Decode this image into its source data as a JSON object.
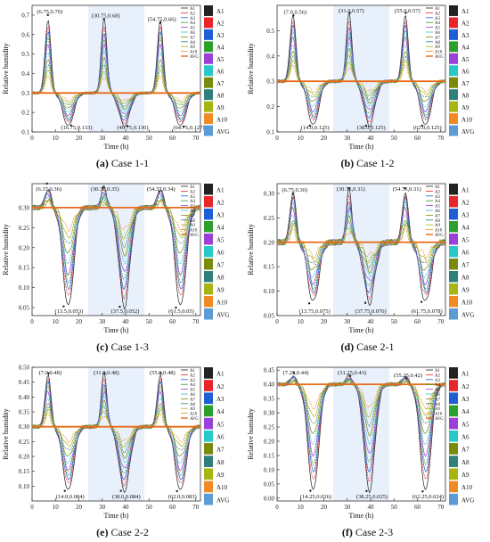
{
  "legend_labels": [
    "A1",
    "A2",
    "A3",
    "A4",
    "A5",
    "A6",
    "A7",
    "A8",
    "A9",
    "A10",
    "AVG"
  ],
  "chart_data": [
    {
      "type": "line",
      "caption_letter": "(a)",
      "caption_text": "Case 1-1",
      "xlabel": "Time (h)",
      "ylabel": "Relative humidity",
      "xlim": [
        0,
        72
      ],
      "ylim": [
        0.1,
        0.75
      ],
      "xticks": [
        0,
        10,
        20,
        30,
        40,
        50,
        60,
        70
      ],
      "yticks": [
        0.1,
        0.2,
        0.3,
        0.4,
        0.5,
        0.6,
        0.7
      ],
      "avg": 0.3,
      "peaks": [
        {
          "x": 6.75,
          "y": 0.7,
          "label": "(6.75,0.70)"
        },
        {
          "x": 30.75,
          "y": 0.68,
          "label": "(30.75,0.68)"
        },
        {
          "x": 54.75,
          "y": 0.66,
          "label": "(54.75,0.66)"
        }
      ],
      "troughs": [
        {
          "x": 16.75,
          "y": 0.133,
          "label": "(16.75,0.133)"
        },
        {
          "x": 40.75,
          "y": 0.13,
          "label": "(40.75,0.130)"
        },
        {
          "x": 64.75,
          "y": 0.127,
          "label": "(64.75,0.127)"
        }
      ]
    },
    {
      "type": "line",
      "caption_letter": "(b)",
      "caption_text": "Case 1-2",
      "xlabel": "Time (h)",
      "ylabel": "Relative humidity",
      "xlim": [
        0,
        72
      ],
      "ylim": [
        0.1,
        0.6
      ],
      "xticks": [
        0,
        10,
        20,
        30,
        40,
        50,
        60,
        70
      ],
      "yticks": [
        0.1,
        0.2,
        0.3,
        0.4,
        0.5
      ],
      "avg": 0.3,
      "peaks": [
        {
          "x": 7.0,
          "y": 0.56,
          "label": "(7.0,0.56)"
        },
        {
          "x": 31.0,
          "y": 0.57,
          "label": "(31.0,0.57)"
        },
        {
          "x": 55.0,
          "y": 0.57,
          "label": "(55.0,0.57)"
        }
      ],
      "troughs": [
        {
          "x": 14.0,
          "y": 0.125,
          "label": "(14.0,0.125)"
        },
        {
          "x": 38.0,
          "y": 0.125,
          "label": "(38.0,0.125)"
        },
        {
          "x": 62.0,
          "y": 0.125,
          "label": "(62.0,0.125)"
        }
      ]
    },
    {
      "type": "line",
      "caption_letter": "(c)",
      "caption_text": "Case 1-3",
      "xlabel": "Time (h)",
      "ylabel": "Relative humidity",
      "xlim": [
        0,
        72
      ],
      "ylim": [
        0.03,
        0.36
      ],
      "xticks": [
        0,
        10,
        20,
        30,
        40,
        50,
        60,
        70
      ],
      "yticks": [
        0.05,
        0.1,
        0.15,
        0.2,
        0.25,
        0.3
      ],
      "avg": 0.3,
      "peaks": [
        {
          "x": 6.37,
          "y": 0.36,
          "label": "(6.37,0.36)"
        },
        {
          "x": 30.37,
          "y": 0.35,
          "label": "(30.37,0.35)"
        },
        {
          "x": 54.37,
          "y": 0.34,
          "label": "(54.37,0.34)"
        }
      ],
      "troughs": [
        {
          "x": 13.5,
          "y": 0.053,
          "label": "(13.5,0.053)"
        },
        {
          "x": 37.5,
          "y": 0.052,
          "label": "(37.5,0.052)"
        },
        {
          "x": 61.5,
          "y": 0.05,
          "label": "(61.5,0.05)"
        }
      ]
    },
    {
      "type": "line",
      "caption_letter": "(d)",
      "caption_text": "Case 2-1",
      "xlabel": "Time (h)",
      "ylabel": "Relative humidity",
      "xlim": [
        0,
        72
      ],
      "ylim": [
        0.05,
        0.32
      ],
      "xticks": [
        0,
        10,
        20,
        30,
        40,
        50,
        60,
        70
      ],
      "yticks": [
        0.05,
        0.1,
        0.15,
        0.2,
        0.25,
        0.3
      ],
      "avg": 0.2,
      "peaks": [
        {
          "x": 6.75,
          "y": 0.3,
          "label": "(6.75,0.30)"
        },
        {
          "x": 30.75,
          "y": 0.31,
          "label": "(30.75,0.31)"
        },
        {
          "x": 54.75,
          "y": 0.31,
          "label": "(54.75,0.31)"
        }
      ],
      "troughs": [
        {
          "x": 13.75,
          "y": 0.075,
          "label": "(13.75,0.075)"
        },
        {
          "x": 37.75,
          "y": 0.076,
          "label": "(37.75,0.076)"
        },
        {
          "x": 61.75,
          "y": 0.078,
          "label": "(61.75,0.078)"
        }
      ]
    },
    {
      "type": "line",
      "caption_letter": "(e)",
      "caption_text": "Case 2-2",
      "xlabel": "Time (h)",
      "ylabel": "Relative humidity",
      "xlim": [
        0,
        72
      ],
      "ylim": [
        0.05,
        0.5
      ],
      "xticks": [
        0,
        10,
        20,
        30,
        40,
        50,
        60,
        70
      ],
      "yticks": [
        0.1,
        0.15,
        0.2,
        0.25,
        0.3,
        0.35,
        0.4,
        0.45,
        0.5
      ],
      "avg": 0.3,
      "peaks": [
        {
          "x": 7.0,
          "y": 0.48,
          "label": "(7.0,0.48)"
        },
        {
          "x": 31.0,
          "y": 0.48,
          "label": "(31.0,0.48)"
        },
        {
          "x": 55.0,
          "y": 0.48,
          "label": "(55.0,0.48)"
        }
      ],
      "troughs": [
        {
          "x": 14.0,
          "y": 0.084,
          "label": "(14.0,0.084)"
        },
        {
          "x": 38.0,
          "y": 0.084,
          "label": "(38.0,0.084)"
        },
        {
          "x": 62.0,
          "y": 0.083,
          "label": "(62.0,0.083)"
        }
      ]
    },
    {
      "type": "line",
      "caption_letter": "(f)",
      "caption_text": "Case 2-3",
      "xlabel": "Time (h)",
      "ylabel": "Relative humidity",
      "xlim": [
        0,
        72
      ],
      "ylim": [
        -0.01,
        0.46
      ],
      "xticks": [
        0,
        10,
        20,
        30,
        40,
        50,
        60,
        70
      ],
      "yticks": [
        0.0,
        0.05,
        0.1,
        0.15,
        0.2,
        0.25,
        0.3,
        0.35,
        0.4,
        0.45
      ],
      "avg": 0.4,
      "peaks": [
        {
          "x": 7.25,
          "y": 0.44,
          "label": "(7.25,0.44)"
        },
        {
          "x": 31.25,
          "y": 0.43,
          "label": "(31.25,0.43)"
        },
        {
          "x": 55.25,
          "y": 0.42,
          "label": "(55.25,0.42)"
        }
      ],
      "troughs": [
        {
          "x": 14.25,
          "y": 0.026,
          "label": "(14.25,0.026)"
        },
        {
          "x": 38.25,
          "y": 0.025,
          "label": "(38.25,0.025)"
        },
        {
          "x": 62.25,
          "y": 0.024,
          "label": "(62.25,0.024)"
        }
      ]
    }
  ],
  "colors": {
    "series": [
      "#222222",
      "#e8262a",
      "#1f5fd6",
      "#2ca02c",
      "#9b3fd9",
      "#28c8c8",
      "#7a8a0c",
      "#2f7f7a",
      "#a6b511",
      "#f08a24",
      "#5c9bd5"
    ],
    "avg_line": "#e86a1a",
    "shade": "#e8f0fb"
  }
}
